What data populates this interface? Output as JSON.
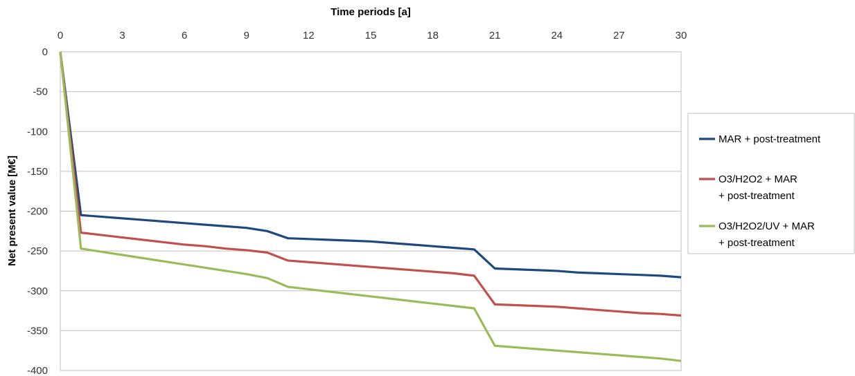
{
  "chart_data": {
    "type": "line",
    "title": "",
    "xlabel": "Time periods [a]",
    "ylabel": "Net present value [M€]",
    "x_axis_position": "top",
    "xlim": [
      0,
      30
    ],
    "ylim": [
      -400,
      0
    ],
    "xticks": [
      0,
      3,
      6,
      9,
      12,
      15,
      18,
      21,
      24,
      27,
      30
    ],
    "yticks": [
      0,
      -50,
      -100,
      -150,
      -200,
      -250,
      -300,
      -350,
      -400
    ],
    "grid": "horizontal",
    "legend_position": "right",
    "x": [
      0,
      1,
      2,
      3,
      4,
      5,
      6,
      7,
      8,
      9,
      10,
      11,
      12,
      13,
      14,
      15,
      16,
      17,
      18,
      19,
      20,
      21,
      22,
      23,
      24,
      25,
      26,
      27,
      28,
      29,
      30
    ],
    "series": [
      {
        "name": "MAR + post-treatment",
        "color": "#1F497D",
        "values": [
          0,
          -205,
          -207,
          -209,
          -211,
          -213,
          -215,
          -217,
          -219,
          -221,
          -225,
          -234,
          -235,
          -236,
          -237,
          -238,
          -240,
          -242,
          -244,
          -246,
          -248,
          -272,
          -273,
          -274,
          -275,
          -277,
          -278,
          -279,
          -280,
          -281,
          -283
        ]
      },
      {
        "name": "O3/H2O2 + MAR + post-treatment",
        "legend_lines": [
          "O3/H2O2 + MAR",
          "+ post-treatment"
        ],
        "color": "#C0504D",
        "values": [
          0,
          -227,
          -230,
          -233,
          -236,
          -239,
          -242,
          -244,
          -247,
          -249,
          -252,
          -262,
          -264,
          -266,
          -268,
          -270,
          -272,
          -274,
          -276,
          -278,
          -281,
          -317,
          -318,
          -319,
          -320,
          -322,
          -324,
          -326,
          -328,
          -329,
          -331
        ]
      },
      {
        "name": "O3/H2O2/UV + MAR + post-treatment",
        "legend_lines": [
          "O3/H2O2/UV + MAR",
          "+ post-treatment"
        ],
        "color": "#9BBB59",
        "values": [
          0,
          -247,
          -251,
          -255,
          -259,
          -263,
          -267,
          -271,
          -275,
          -279,
          -284,
          -295,
          -298,
          -301,
          -304,
          -307,
          -310,
          -313,
          -316,
          -319,
          -322,
          -369,
          -371,
          -373,
          -375,
          -377,
          -379,
          -381,
          -383,
          -385,
          -388
        ]
      }
    ]
  }
}
